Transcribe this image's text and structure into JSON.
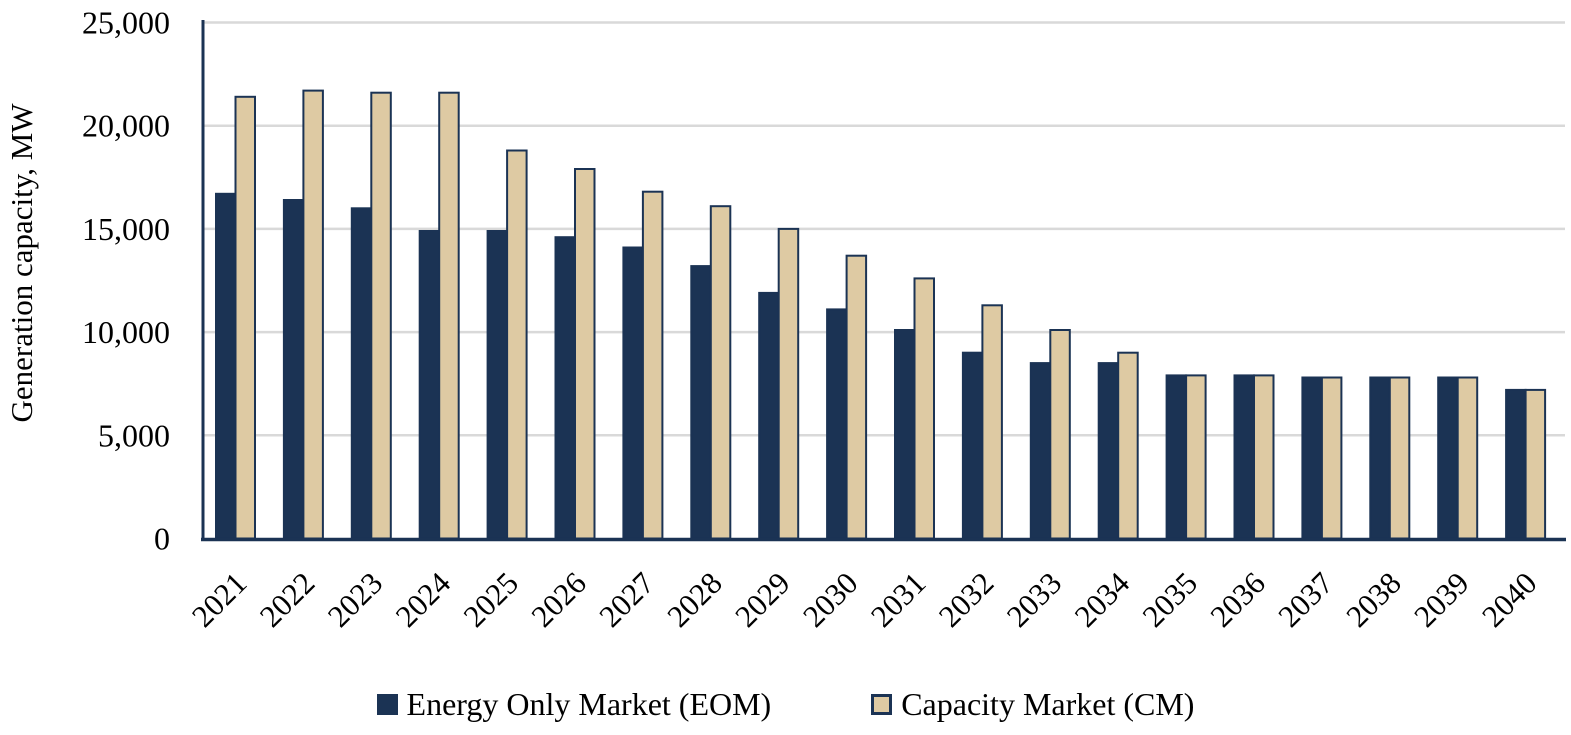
{
  "chart_data": {
    "type": "bar",
    "title": "",
    "xlabel": "",
    "ylabel": "Generation capacity, MW",
    "categories": [
      "2021",
      "2022",
      "2023",
      "2024",
      "2025",
      "2026",
      "2027",
      "2028",
      "2029",
      "2030",
      "2031",
      "2032",
      "2033",
      "2034",
      "2035",
      "2036",
      "2037",
      "2038",
      "2039",
      "2040"
    ],
    "series": [
      {
        "name": "Energy Only Market (EOM)",
        "key": "eom",
        "color": "#1b3354",
        "values": [
          16700,
          16400,
          16000,
          14900,
          14900,
          14600,
          14100,
          13200,
          11900,
          11100,
          10100,
          9000,
          8500,
          8500,
          7900,
          7900,
          7800,
          7800,
          7800,
          7200
        ]
      },
      {
        "name": "Capacity Market (CM)",
        "key": "cm",
        "color": "#decaa3",
        "values": [
          21400,
          21700,
          21600,
          21600,
          18800,
          17900,
          16800,
          16100,
          15000,
          13700,
          12600,
          11300,
          10100,
          9000,
          7900,
          7900,
          7800,
          7800,
          7800,
          7200
        ]
      }
    ],
    "ylim": [
      0,
      25000
    ],
    "ytick_step": 5000,
    "ytick_labels": [
      "0",
      "5,000",
      "10,000",
      "15,000",
      "20,000",
      "25,000"
    ],
    "grid": true,
    "legend_position": "bottom",
    "colors": {
      "bar_border": "#1b3354",
      "axis": "#1b3354",
      "gridline": "#d9d9d9",
      "text": "#000000",
      "background": "#ffffff"
    }
  }
}
